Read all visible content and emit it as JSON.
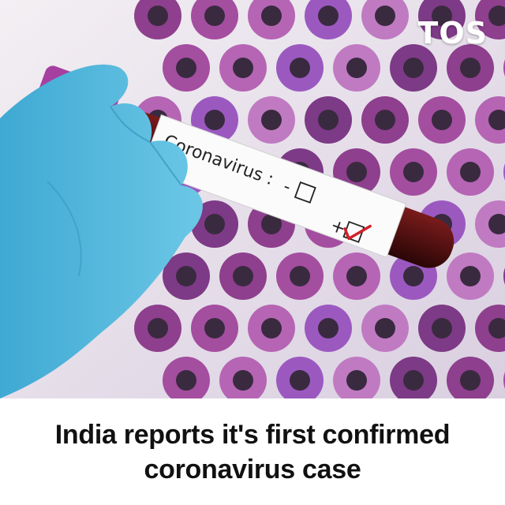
{
  "brand": {
    "logo_text": "TOS"
  },
  "photo": {
    "tube_label": "Coronavirus :",
    "negative_mark": "-",
    "positive_mark": "+",
    "check_icon": "check-icon"
  },
  "headline": {
    "text": "India reports it's first confirmed coronavirus case"
  },
  "colors": {
    "glove": "#56b8dc",
    "cap": "#a63fa0",
    "vials": "#9d4a9a",
    "check": "#d2202a",
    "caption_bg": "#ffffff"
  }
}
